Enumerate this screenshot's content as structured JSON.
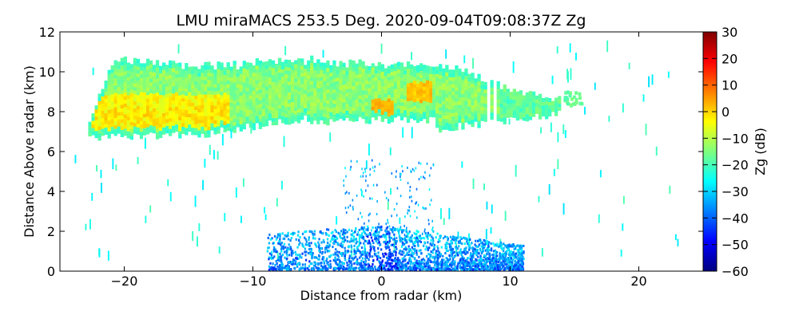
{
  "chart_data": {
    "type": "heatmap",
    "title": "LMU miraMACS 253.5 Deg. 2020-09-04T09:08:37Z  Zg",
    "xlabel": "Distance from radar (km)",
    "ylabel": "Distance Above radar  (km)",
    "colorbar_label": "Zg (dB)",
    "xlim": [
      -25,
      25
    ],
    "ylim": [
      0,
      12
    ],
    "clim": [
      -60,
      30
    ],
    "x_ticks": [
      -20,
      -10,
      0,
      10,
      20
    ],
    "x_tick_labels": [
      "−20",
      "−10",
      "0",
      "10",
      "20"
    ],
    "y_ticks": [
      0,
      2,
      4,
      6,
      8,
      10,
      12
    ],
    "y_tick_labels": [
      "0",
      "2",
      "4",
      "6",
      "8",
      "10",
      "12"
    ],
    "colorbar_ticks": [
      30,
      20,
      10,
      0,
      -10,
      -20,
      -30,
      -40,
      -50,
      -60
    ],
    "colorbar_tick_labels": [
      "30",
      "20",
      "10",
      "0",
      "−10",
      "−20",
      "−30",
      "−40",
      "−50",
      "−60"
    ],
    "colormap": "jet",
    "colormap_stops": [
      "#00007f",
      "#0000ff",
      "#007fff",
      "#00ffff",
      "#7fff7f",
      "#ffff00",
      "#ff7f00",
      "#ff0000",
      "#7f0000"
    ],
    "features": [
      {
        "name": "upper cloud layer",
        "x": [
          -22.5,
          13.5
        ],
        "y_bottom": 6.8,
        "y_top": 10.6,
        "typical_zg_db": -12
      },
      {
        "name": "strong core",
        "x": [
          -22,
          -13
        ],
        "y": [
          7.0,
          8.8
        ],
        "typical_zg_db": 0
      },
      {
        "name": "embedded cells",
        "x": [
          -1,
          3.5
        ],
        "y": [
          7.8,
          9.2
        ],
        "typical_zg_db": 2
      },
      {
        "name": "near-ground clutter",
        "x": [
          -9,
          11
        ],
        "y": [
          0,
          2.2
        ],
        "typical_zg_db": -30
      }
    ]
  }
}
